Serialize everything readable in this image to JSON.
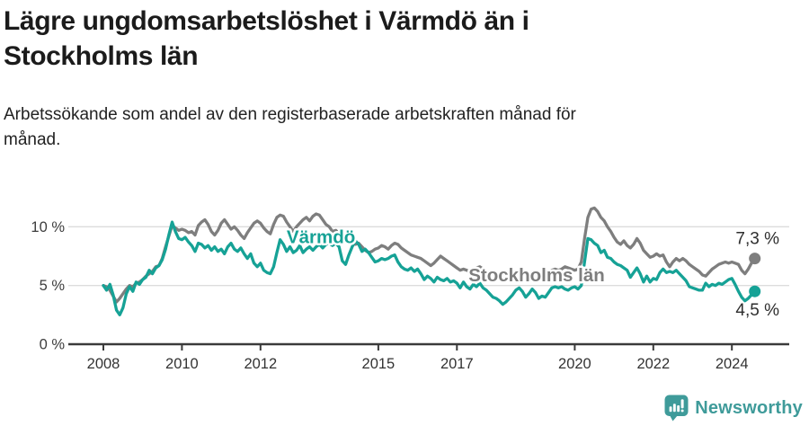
{
  "header": {
    "title_lines": [
      "Lägre ungdomsarbetslöshet i Värmdö än i",
      "Stockholms län"
    ],
    "subtitle_lines": [
      "Arbetssökande som andel av den registerbaserade arbetskraften månad för",
      "månad."
    ]
  },
  "chart_data": {
    "type": "line",
    "title": "Lägre ungdomsarbetslöshet i Värmdö än i Stockholms län",
    "xlabel": "",
    "ylabel": "",
    "grid": "horizontal",
    "legend_position": "inline-labels",
    "x_start": 2008.0,
    "x_step": 0.083333,
    "x_ticks": [
      2008,
      2010,
      2012,
      2015,
      2017,
      2020,
      2022,
      2024
    ],
    "y_ticks": [
      {
        "value": 0,
        "label": "0 %"
      },
      {
        "value": 5,
        "label": "5 %"
      },
      {
        "value": 10,
        "label": "10 %"
      }
    ],
    "ylim": [
      0,
      12.2
    ],
    "xlim": [
      2007.1,
      2025.45
    ],
    "axis_color": "#3a3a3a",
    "grid_color": "#dcdcdc",
    "label_color": "#333333",
    "series": [
      {
        "name": "Värmdö",
        "color": "#16a296",
        "end_label": "4,5 %",
        "end_label_dy": 27,
        "label_anchor": {
          "x": 2013.54,
          "y": 9.15
        },
        "values": [
          5.0,
          4.6,
          5.1,
          4.2,
          2.9,
          2.5,
          3.1,
          4.3,
          4.9,
          4.5,
          5.3,
          5.1,
          5.5,
          5.7,
          6.3,
          6.0,
          6.5,
          6.7,
          7.2,
          8.1,
          9.3,
          10.4,
          9.6,
          9.0,
          8.9,
          9.1,
          8.7,
          8.4,
          7.9,
          8.6,
          8.5,
          8.2,
          8.4,
          8.0,
          8.3,
          7.9,
          8.1,
          7.7,
          8.3,
          8.6,
          8.1,
          7.9,
          8.2,
          7.7,
          7.3,
          7.7,
          6.9,
          6.6,
          6.9,
          6.3,
          6.1,
          6.0,
          6.6,
          7.8,
          8.9,
          8.5,
          7.9,
          8.3,
          7.8,
          8.0,
          8.4,
          7.8,
          8.1,
          8.3,
          8.0,
          8.3,
          8.5,
          8.2,
          8.5,
          8.6,
          8.4,
          8.6,
          8.3,
          7.1,
          6.8,
          7.6,
          8.3,
          8.8,
          8.5,
          7.9,
          8.1,
          7.8,
          7.4,
          7.0,
          7.1,
          7.3,
          7.2,
          7.3,
          7.5,
          7.6,
          7.0,
          6.6,
          6.4,
          6.3,
          6.5,
          6.2,
          6.4,
          6.0,
          5.5,
          5.8,
          5.6,
          5.3,
          5.7,
          5.5,
          5.4,
          5.6,
          5.3,
          5.4,
          5.2,
          4.8,
          5.3,
          4.9,
          4.7,
          5.1,
          4.9,
          5.2,
          4.8,
          4.6,
          4.3,
          4.0,
          3.9,
          3.7,
          3.4,
          3.6,
          3.9,
          4.2,
          4.6,
          4.8,
          4.5,
          4.0,
          4.3,
          4.7,
          4.4,
          3.9,
          4.1,
          4.0,
          4.4,
          4.8,
          4.9,
          4.8,
          4.9,
          4.7,
          4.6,
          4.8,
          4.9,
          4.7,
          5.0,
          7.0,
          9.0,
          8.9,
          8.6,
          8.4,
          7.8,
          8.0,
          7.4,
          7.3,
          7.0,
          6.8,
          6.7,
          6.5,
          6.3,
          5.7,
          6.1,
          6.5,
          6.0,
          5.3,
          5.8,
          5.3,
          5.6,
          5.5,
          6.1,
          6.4,
          6.1,
          6.2,
          6.1,
          6.3,
          6.0,
          5.7,
          5.4,
          4.9,
          4.8,
          4.7,
          4.6,
          4.6,
          5.2,
          4.9,
          5.1,
          5.0,
          5.2,
          5.1,
          5.3,
          5.5,
          5.6,
          5.1,
          4.5,
          4.0,
          3.7,
          3.9,
          4.2,
          4.5
        ]
      },
      {
        "name": "Stockholms län",
        "color": "#7e7e7e",
        "end_label": "7,3 %",
        "end_label_dy": -16,
        "label_anchor": {
          "x": 2019.03,
          "y": 5.9
        },
        "values": [
          5.0,
          4.9,
          4.6,
          4.1,
          3.6,
          3.9,
          4.3,
          4.7,
          5.0,
          4.9,
          5.2,
          5.3,
          5.5,
          5.8,
          6.0,
          6.2,
          6.6,
          6.7,
          7.3,
          8.3,
          9.2,
          10.1,
          9.9,
          9.7,
          9.8,
          9.7,
          9.5,
          9.6,
          9.3,
          10.1,
          10.4,
          10.6,
          10.2,
          9.6,
          9.3,
          9.7,
          10.3,
          10.6,
          10.2,
          9.8,
          10.0,
          9.7,
          9.3,
          9.0,
          9.5,
          9.9,
          10.3,
          10.5,
          10.3,
          9.9,
          9.6,
          9.4,
          10.2,
          10.8,
          11.0,
          10.9,
          10.4,
          10.0,
          9.6,
          10.0,
          10.3,
          10.6,
          10.8,
          10.5,
          10.9,
          11.1,
          11.0,
          10.6,
          10.2,
          10.0,
          9.6,
          9.7,
          9.4,
          9.2,
          9.0,
          8.8,
          8.7,
          8.5,
          8.6,
          8.3,
          8.0,
          7.8,
          7.9,
          8.1,
          8.2,
          8.4,
          8.3,
          8.1,
          8.4,
          8.6,
          8.5,
          8.2,
          8.0,
          7.8,
          7.6,
          7.5,
          7.4,
          7.3,
          7.1,
          6.9,
          6.7,
          6.9,
          7.2,
          7.5,
          7.3,
          7.1,
          6.9,
          6.7,
          6.5,
          6.3,
          6.4,
          6.3,
          6.2,
          6.4,
          6.5,
          6.6,
          6.4,
          6.2,
          6.1,
          6.0,
          5.9,
          6.0,
          5.9,
          6.0,
          6.1,
          6.0,
          6.2,
          6.1,
          6.0,
          5.9,
          6.0,
          6.1,
          6.0,
          5.9,
          6.0,
          6.1,
          6.2,
          6.3,
          6.4,
          6.3,
          6.4,
          6.6,
          6.5,
          6.4,
          6.3,
          6.4,
          7.0,
          9.0,
          10.8,
          11.5,
          11.6,
          11.3,
          10.8,
          10.5,
          10.0,
          9.6,
          9.1,
          8.7,
          8.5,
          8.8,
          8.4,
          8.2,
          8.5,
          9.0,
          8.6,
          8.0,
          7.7,
          7.4,
          7.5,
          7.7,
          7.5,
          7.6,
          7.0,
          6.6,
          7.0,
          7.3,
          7.1,
          7.3,
          7.1,
          6.8,
          6.6,
          6.4,
          6.2,
          5.9,
          5.8,
          6.1,
          6.4,
          6.6,
          6.8,
          6.9,
          7.0,
          6.9,
          7.0,
          6.9,
          6.8,
          6.3,
          6.0,
          6.4,
          6.9,
          7.3
        ]
      }
    ]
  },
  "footer": {
    "brand": "Newsworthy",
    "logo_color": "#3f9b9a"
  }
}
